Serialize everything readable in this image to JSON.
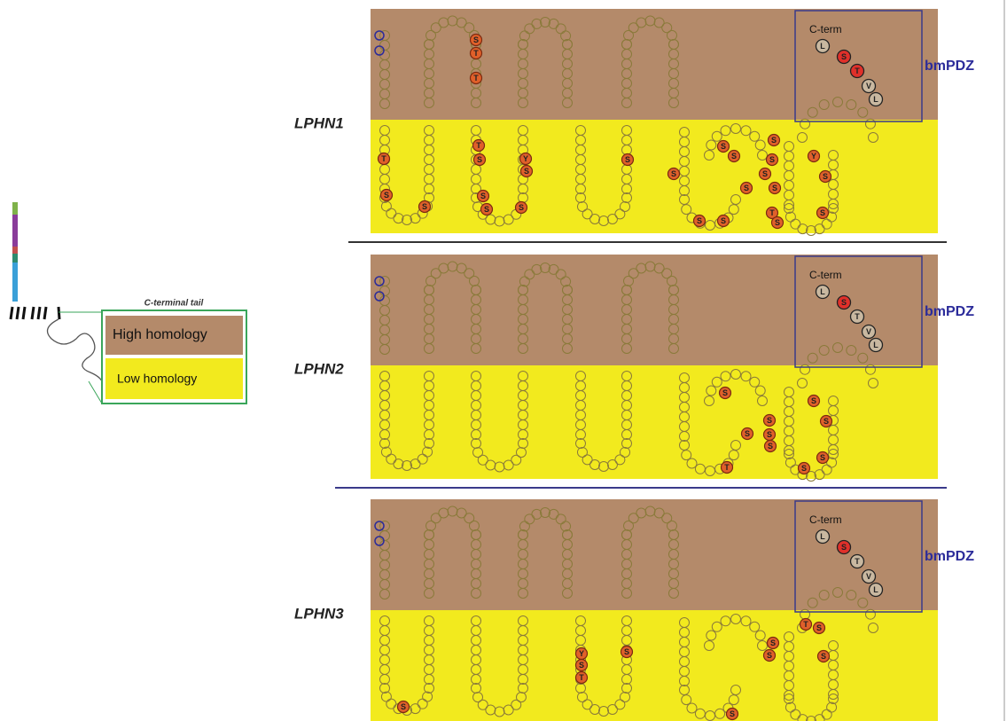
{
  "legend": {
    "title": "C-terminal tail",
    "high": "High homology",
    "low": "Low homology"
  },
  "panels": [
    {
      "name": "LPHN1",
      "cterm": "C-term",
      "partner": "bmPDZ",
      "motif": [
        "L",
        "S",
        "T",
        "V",
        "L"
      ],
      "high_sites": [
        "S",
        "T",
        "T"
      ],
      "low_sites": [
        "T",
        "S",
        "S",
        "T",
        "S",
        "S",
        "S",
        "Y",
        "S",
        "S",
        "S",
        "S",
        "S",
        "S",
        "S",
        "S",
        "S",
        "S",
        "S",
        "S",
        "S",
        "T",
        "S",
        "S",
        "Y",
        "S"
      ]
    },
    {
      "name": "LPHN2",
      "cterm": "C-term",
      "partner": "bmPDZ",
      "motif": [
        "L",
        "S",
        "T",
        "V",
        "L"
      ],
      "high_sites": [],
      "low_sites": [
        "S",
        "S",
        "S",
        "S",
        "S",
        "T",
        "S",
        "S",
        "S",
        "S"
      ]
    },
    {
      "name": "LPHN3",
      "cterm": "C-term",
      "partner": "bmPDZ",
      "motif": [
        "L",
        "S",
        "T",
        "V",
        "L"
      ],
      "high_sites": [],
      "low_sites": [
        "S",
        "Y",
        "S",
        "T",
        "S",
        "S",
        "S",
        "S",
        "T",
        "S",
        "S"
      ]
    }
  ]
}
